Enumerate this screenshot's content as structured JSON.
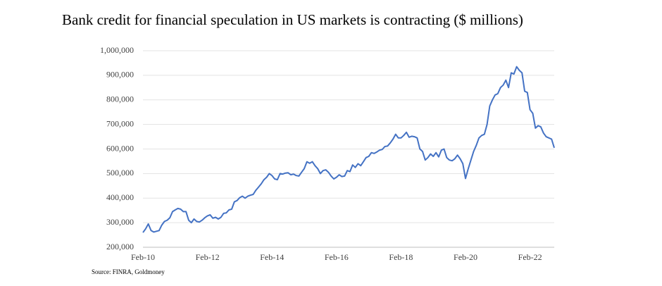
{
  "chart_data": {
    "type": "line",
    "title": "Bank credit for financial speculation in US markets is contracting ($ millions)",
    "source": "Source: FINRA, Goldmoney",
    "categories": [
      "Feb-10",
      null,
      null,
      null,
      null,
      null,
      null,
      null,
      null,
      null,
      null,
      null,
      null,
      null,
      null,
      null,
      null,
      null,
      null,
      null,
      null,
      null,
      null,
      null,
      "Feb-12",
      null,
      null,
      null,
      null,
      null,
      null,
      null,
      null,
      null,
      null,
      null,
      null,
      null,
      null,
      null,
      null,
      null,
      null,
      null,
      null,
      null,
      null,
      null,
      "Feb-14",
      null,
      null,
      null,
      null,
      null,
      null,
      null,
      null,
      null,
      null,
      null,
      null,
      null,
      null,
      null,
      null,
      null,
      null,
      null,
      null,
      null,
      null,
      null,
      "Feb-16",
      null,
      null,
      null,
      null,
      null,
      null,
      null,
      null,
      null,
      null,
      null,
      null,
      null,
      null,
      null,
      null,
      null,
      null,
      null,
      null,
      null,
      null,
      null,
      "Feb-18",
      null,
      null,
      null,
      null,
      null,
      null,
      null,
      null,
      null,
      null,
      null,
      null,
      null,
      null,
      null,
      null,
      null,
      null,
      null,
      null,
      null,
      null,
      null,
      "Feb-20",
      null,
      null,
      null,
      null,
      null,
      null,
      null,
      null,
      null,
      null,
      null,
      null,
      null,
      null,
      null,
      null,
      null,
      null,
      null,
      null,
      null,
      null,
      null,
      "Feb-22",
      null,
      null,
      null,
      null,
      null,
      null,
      null,
      null,
      null
    ],
    "series": [
      {
        "color": "#4472c4",
        "values": [
          260000,
          275000,
          295000,
          268000,
          262000,
          265000,
          268000,
          290000,
          305000,
          310000,
          320000,
          345000,
          352000,
          358000,
          355000,
          345000,
          345000,
          310000,
          300000,
          315000,
          305000,
          303000,
          310000,
          320000,
          328000,
          332000,
          318000,
          322000,
          315000,
          322000,
          338000,
          340000,
          352000,
          355000,
          385000,
          390000,
          402000,
          408000,
          400000,
          408000,
          412000,
          415000,
          432000,
          445000,
          458000,
          475000,
          485000,
          500000,
          492000,
          478000,
          475000,
          500000,
          498000,
          502000,
          503000,
          495000,
          498000,
          492000,
          490000,
          505000,
          520000,
          548000,
          542000,
          548000,
          532000,
          520000,
          500000,
          512000,
          515000,
          505000,
          490000,
          478000,
          485000,
          495000,
          488000,
          490000,
          512000,
          508000,
          535000,
          525000,
          540000,
          532000,
          548000,
          565000,
          570000,
          585000,
          582000,
          588000,
          595000,
          598000,
          610000,
          612000,
          625000,
          640000,
          660000,
          645000,
          645000,
          655000,
          668000,
          648000,
          652000,
          650000,
          645000,
          600000,
          590000,
          555000,
          565000,
          580000,
          570000,
          585000,
          568000,
          595000,
          600000,
          565000,
          555000,
          552000,
          560000,
          575000,
          560000,
          540000,
          480000,
          520000,
          555000,
          590000,
          615000,
          645000,
          655000,
          660000,
          700000,
          775000,
          800000,
          820000,
          825000,
          850000,
          860000,
          880000,
          850000,
          910000,
          905000,
          935000,
          920000,
          910000,
          835000,
          830000,
          760000,
          745000,
          685000,
          695000,
          690000,
          665000,
          650000,
          645000,
          640000,
          605000
        ]
      }
    ],
    "ylim": [
      200000,
      1000000
    ],
    "yticks": [
      {
        "value": 200000,
        "label": "200,000"
      },
      {
        "value": 300000,
        "label": "300,000"
      },
      {
        "value": 400000,
        "label": "400,000"
      },
      {
        "value": 500000,
        "label": "500,000"
      },
      {
        "value": 600000,
        "label": "600,000"
      },
      {
        "value": 700000,
        "label": "700,000"
      },
      {
        "value": 800000,
        "label": "800,000"
      },
      {
        "value": 900000,
        "label": "900,000"
      },
      {
        "value": 1000000,
        "label": "1,000,000"
      }
    ],
    "grid": true
  }
}
